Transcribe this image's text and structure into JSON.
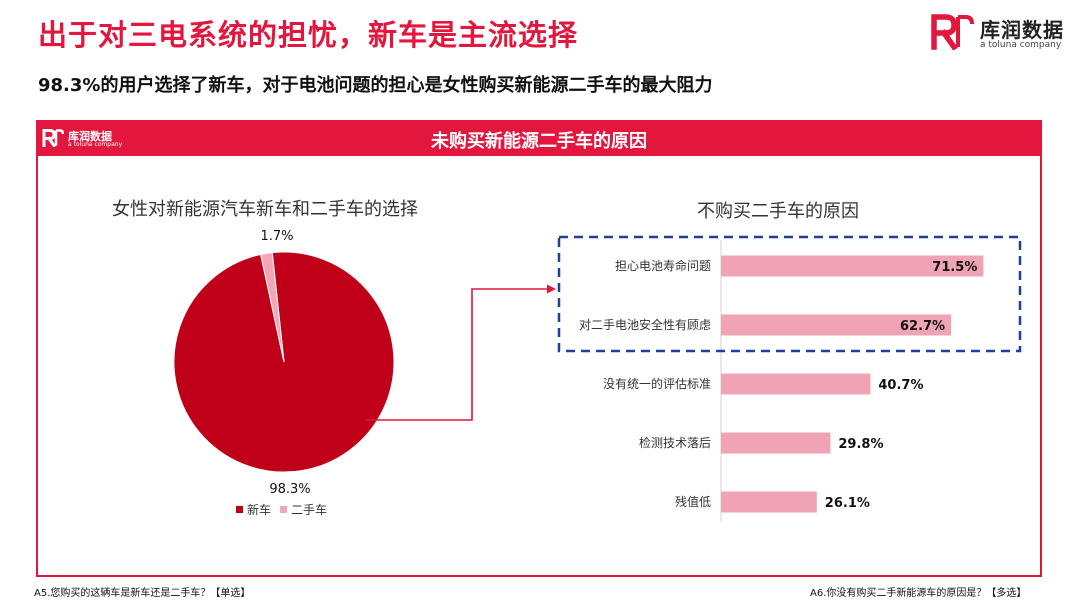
{
  "header": {
    "title": "出于对三电系统的担忧，新车是主流选择",
    "subtitle": "98.3%的用户选择了新车，对于电池问题的担心是女性购买新能源二手车的最大阻力"
  },
  "logo": {
    "name": "库润数据",
    "sub": "a toluna company"
  },
  "panel": {
    "title": "未购买新能源二手车的原因"
  },
  "colors": {
    "accent": "#e3173e",
    "pie_main": "#c00018",
    "pie_minor": "#f2a6b6",
    "bar": "#f0a3b5",
    "highlight_box": "#1f3f9a"
  },
  "footnotes": {
    "left": "A5.您购买的这辆车是新车还是二手车？【单选】",
    "right": "A6.你没有购买二手新能源车的原因是？【多选】"
  },
  "chart_data": [
    {
      "type": "pie",
      "title": "女性对新能源汽车新车和二手车的选择",
      "slices": [
        {
          "label": "新车",
          "value": 98.3,
          "value_label": "98.3%",
          "color": "#c00018"
        },
        {
          "label": "二手车",
          "value": 1.7,
          "value_label": "1.7%",
          "color": "#f2a6b6"
        }
      ],
      "legend": "bottom"
    },
    {
      "type": "bar",
      "orientation": "horizontal",
      "title": "不购买二手车的原因",
      "categories": [
        "担心电池寿命问题",
        "对二手电池安全性有顾虑",
        "没有统一的评估标准",
        "检测技术落后",
        "残值低"
      ],
      "values": [
        71.5,
        62.7,
        40.7,
        29.8,
        26.1
      ],
      "value_labels": [
        "71.5%",
        "62.7%",
        "40.7%",
        "29.8%",
        "26.1%"
      ],
      "xlim": [
        0,
        100
      ],
      "highlighted_categories": [
        "担心电池寿命问题",
        "对二手电池安全性有顾虑"
      ]
    }
  ]
}
